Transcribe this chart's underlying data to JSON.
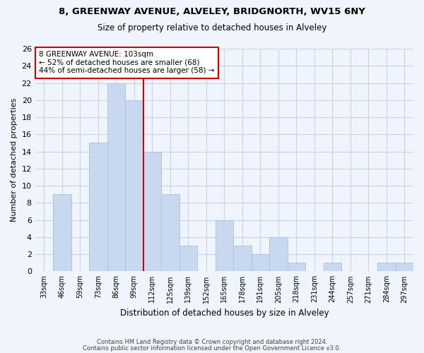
{
  "title": "8, GREENWAY AVENUE, ALVELEY, BRIDGNORTH, WV15 6NY",
  "subtitle": "Size of property relative to detached houses in Alveley",
  "xlabel": "Distribution of detached houses by size in Alveley",
  "ylabel": "Number of detached properties",
  "bar_labels": [
    "33sqm",
    "46sqm",
    "59sqm",
    "73sqm",
    "86sqm",
    "99sqm",
    "112sqm",
    "125sqm",
    "139sqm",
    "152sqm",
    "165sqm",
    "178sqm",
    "191sqm",
    "205sqm",
    "218sqm",
    "231sqm",
    "244sqm",
    "257sqm",
    "271sqm",
    "284sqm",
    "297sqm"
  ],
  "bar_values": [
    0,
    9,
    0,
    15,
    22,
    20,
    14,
    9,
    3,
    0,
    6,
    3,
    2,
    4,
    1,
    0,
    1,
    0,
    0,
    1,
    1
  ],
  "bar_color": "#c8d8ee",
  "bar_edge_color": "#aec4e0",
  "grid_color": "#c8d4e8",
  "vline_x_index": 5,
  "vline_color": "#cc0000",
  "annotation_title": "8 GREENWAY AVENUE: 103sqm",
  "annotation_line1": "← 52% of detached houses are smaller (68)",
  "annotation_line2": "44% of semi-detached houses are larger (58) →",
  "annotation_box_color": "#ffffff",
  "annotation_box_edge": "#cc0000",
  "ylim": [
    0,
    26
  ],
  "yticks": [
    0,
    2,
    4,
    6,
    8,
    10,
    12,
    14,
    16,
    18,
    20,
    22,
    24,
    26
  ],
  "bg_color": "#f0f4fc",
  "footer_line1": "Contains HM Land Registry data © Crown copyright and database right 2024.",
  "footer_line2": "Contains public sector information licensed under the Open Government Licence v3.0."
}
